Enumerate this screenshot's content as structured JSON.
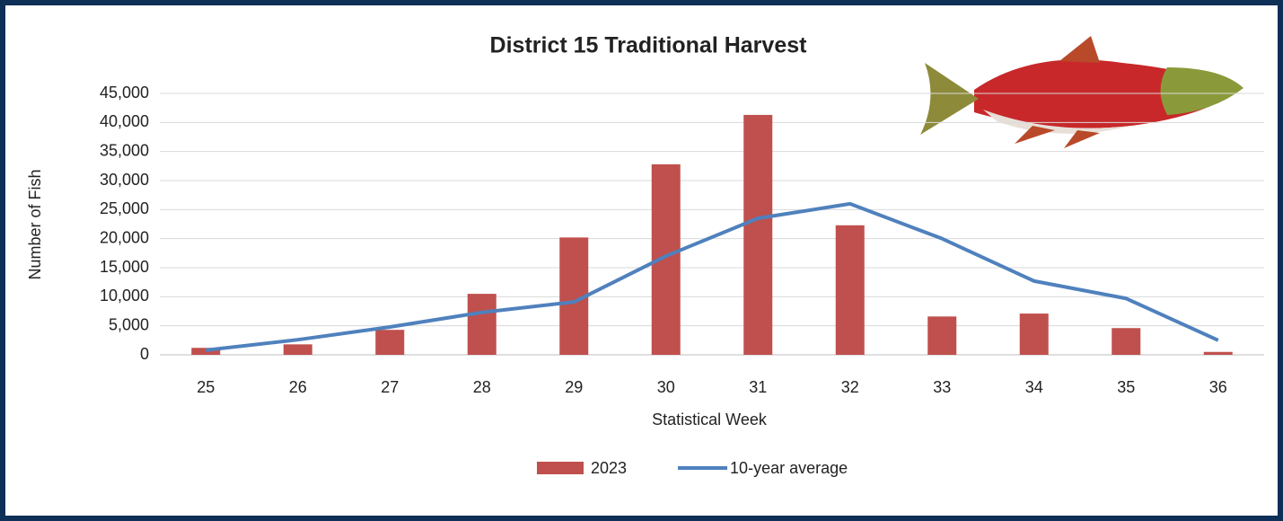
{
  "chart_data": {
    "type": "bar",
    "title": "District 15 Traditional Harvest",
    "x_label": "Statistical Week",
    "y_label": "Number of Fish",
    "categories": [
      "25",
      "26",
      "27",
      "28",
      "29",
      "30",
      "31",
      "32",
      "33",
      "34",
      "35",
      "36"
    ],
    "series": [
      {
        "name": "2023",
        "type": "bar",
        "color": "#c0504d",
        "values": [
          1200,
          1800,
          4300,
          10500,
          20200,
          32800,
          41300,
          22300,
          6600,
          7100,
          4600,
          500
        ]
      },
      {
        "name": "10-year average",
        "type": "line",
        "color": "#4f81bd",
        "values": [
          800,
          2600,
          4800,
          7300,
          9100,
          17000,
          23500,
          26000,
          20000,
          12700,
          9700,
          2500
        ]
      }
    ],
    "ylim": [
      0,
      45000
    ],
    "yticks": [
      0,
      {
        "value": 5000,
        "label": "5,000"
      },
      {
        "value": 10000,
        "label": "10,000"
      },
      {
        "value": 15000,
        "label": "15,000"
      },
      {
        "value": 20000,
        "label": "20,000"
      },
      {
        "value": 25000,
        "label": "25,000"
      },
      {
        "value": 30000,
        "label": "30,000"
      },
      {
        "value": 35000,
        "label": "35,000"
      },
      {
        "value": 40000,
        "label": "40,000"
      },
      {
        "value": 45000,
        "label": "45,000"
      }
    ],
    "grid": true,
    "legend": "bottom"
  }
}
